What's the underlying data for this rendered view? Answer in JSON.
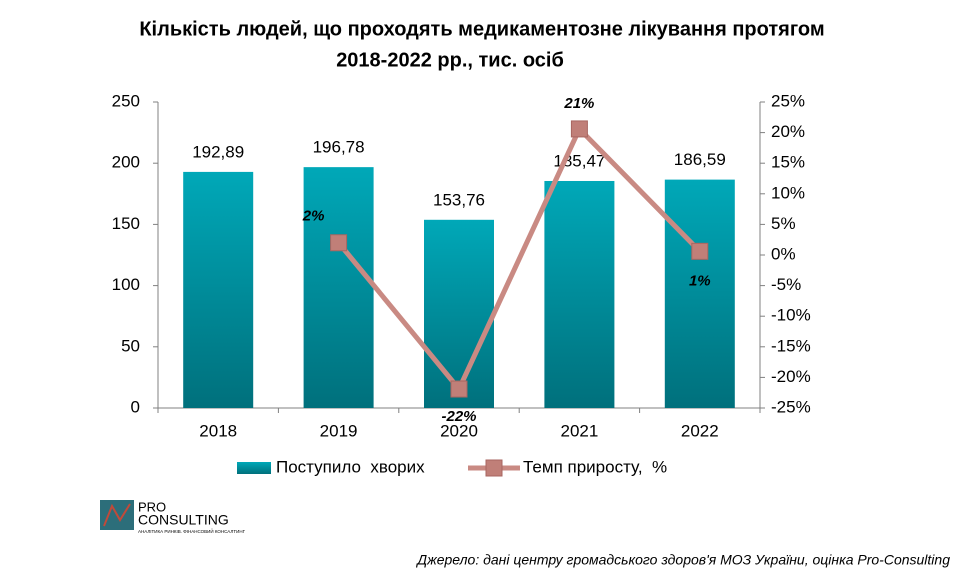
{
  "chart_data": {
    "type": "bar_line",
    "title": "Кількість людей, що проходять медикаментозне лікування протягом",
    "subtitle": "2018-2022 рр., тис. осіб",
    "categories": [
      "2018",
      "2019",
      "2020",
      "2021",
      "2022"
    ],
    "series": [
      {
        "name": "Поступило  хворих",
        "type": "bar",
        "color": "#00a0b0",
        "values": [
          192.89,
          196.78,
          153.76,
          185.47,
          186.59
        ],
        "value_labels": [
          "192,89",
          "196,78",
          "153,76",
          "185,47",
          "186,59"
        ]
      },
      {
        "name": "Темп приросту,  %",
        "type": "line",
        "axis": "y2",
        "color": "#c98a83",
        "values": [
          null,
          2.0,
          -21.9,
          20.6,
          0.6
        ],
        "value_labels": [
          null,
          "2%",
          "-22%",
          "21%",
          "1%"
        ]
      }
    ],
    "ylim": [
      0,
      250
    ],
    "yticks": [
      0,
      50,
      100,
      150,
      200,
      250
    ],
    "y2lim": [
      -25,
      25
    ],
    "y2ticks": [
      {
        "value": -25,
        "label": "-25%"
      },
      {
        "value": -20,
        "label": "-20%"
      },
      {
        "value": -15,
        "label": "-15%"
      },
      {
        "value": -10,
        "label": "-10%"
      },
      {
        "value": -5,
        "label": "-5%"
      },
      {
        "value": 0,
        "label": "0%"
      },
      {
        "value": 5,
        "label": "5%"
      },
      {
        "value": 10,
        "label": "10%"
      },
      {
        "value": 15,
        "label": "15%"
      },
      {
        "value": 20,
        "label": "20%"
      },
      {
        "value": 25,
        "label": "25%"
      }
    ],
    "grid": false,
    "legend": "bottom"
  },
  "logo": {
    "line1": "PRO",
    "line2": "CONSULTING",
    "tagline": "АНАЛІТИКА РИНКІВ. ФІНАНСОВИЙ КОНСАЛТИНГ"
  },
  "source": "Джерело: дані центру громадського здоров'я МОЗ України, оцінка Pro-Consulting"
}
